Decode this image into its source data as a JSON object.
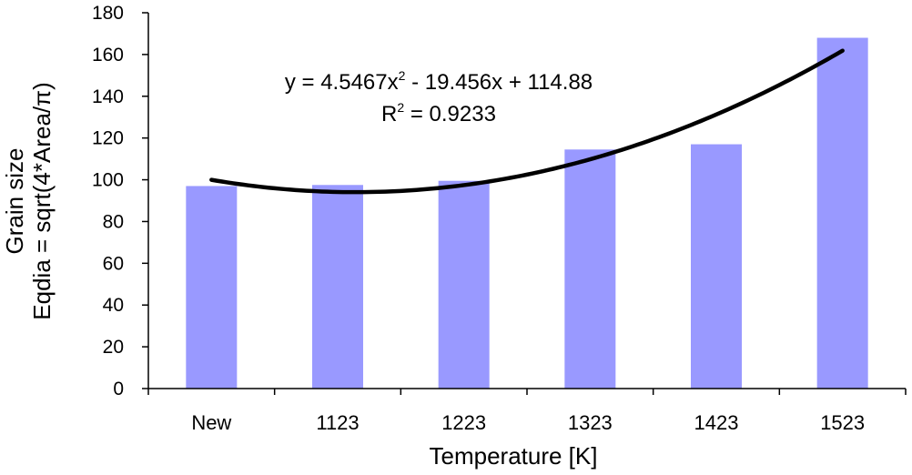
{
  "chart_data": {
    "type": "bar",
    "title": "",
    "xlabel": "Temperature [K]",
    "ylabel_line1": "Grain size",
    "ylabel_line2": "Eqdia = sqrt(4*Area/π)",
    "categories": [
      "New",
      "1123",
      "1223",
      "1323",
      "1423",
      "1523"
    ],
    "values": [
      97,
      97.5,
      99.5,
      114.5,
      117,
      168
    ],
    "ylim": [
      0,
      180
    ],
    "ytick_step": 20,
    "grid": false,
    "legend": "none",
    "bar_color": "#9999ff",
    "trendline": {
      "type": "polynomial",
      "order": 2,
      "coefficients": [
        4.5467,
        -19.456,
        114.88
      ],
      "equation_prefix": "y = 4.5467x",
      "equation_sup": "2",
      "equation_suffix": " - 19.456x + 114.88",
      "r2_prefix": "R",
      "r2_sup": "2",
      "r2_suffix": " = 0.9233",
      "color": "#000000"
    }
  }
}
